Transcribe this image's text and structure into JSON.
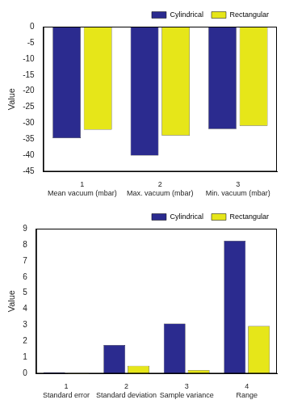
{
  "chart_data": [
    {
      "type": "bar",
      "y_label": "Value",
      "categories": [
        "Mean vacuum (mbar)",
        "Max. vacuum (mbar)",
        "Min. vacuum (mbar)"
      ],
      "xticks": [
        1,
        2,
        3
      ],
      "series": [
        {
          "name": "Cylindrical",
          "color": "#2b2b8f",
          "values": [
            -34.6,
            -40,
            -31.8
          ]
        },
        {
          "name": "Rectangular",
          "color": "#e6e619",
          "values": [
            -32,
            -33.8,
            -30.8
          ]
        }
      ],
      "ylim": [
        -45,
        0
      ],
      "yticks": [
        -45,
        -40,
        -35,
        -30,
        -25,
        -20,
        -15,
        -10,
        -5,
        0
      ],
      "grid": false,
      "legend": "top-right"
    },
    {
      "type": "bar",
      "y_label": "Value",
      "categories": [
        "Standard error",
        "Standard deviation",
        "Sample variance",
        "Range"
      ],
      "xticks": [
        1,
        2,
        3,
        4
      ],
      "series": [
        {
          "name": "Cylindrical",
          "color": "#2b2b8f",
          "values": [
            0.08,
            1.78,
            3.1,
            8.25
          ]
        },
        {
          "name": "Rectangular",
          "color": "#e6e619",
          "values": [
            0.03,
            0.48,
            0.22,
            2.95
          ]
        }
      ],
      "ylim": [
        0,
        9
      ],
      "yticks": [
        0,
        1,
        2,
        3,
        4,
        5,
        6,
        7,
        8,
        9
      ],
      "grid": false,
      "legend": "top-right"
    }
  ]
}
